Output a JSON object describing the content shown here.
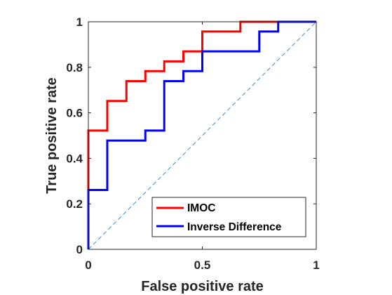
{
  "chart_data": {
    "type": "line",
    "title": "",
    "xlabel": "False positive rate",
    "ylabel": "True positive rate",
    "xlim": [
      0,
      1
    ],
    "ylim": [
      0,
      1
    ],
    "xticks": [
      0,
      0.5,
      1
    ],
    "yticks": [
      0,
      0.2,
      0.4,
      0.6,
      0.8,
      1
    ],
    "xtick_labels": [
      "0",
      "0.5",
      "1"
    ],
    "ytick_labels": [
      "0",
      "0.2",
      "0.4",
      "0.6",
      "0.8",
      "1"
    ],
    "grid": false,
    "legend_position": "bottom-right",
    "step_curve": true,
    "series": [
      {
        "name": "IMOC",
        "color": "#ff0000",
        "x": [
          0,
          0,
          0.083,
          0.083,
          0.167,
          0.167,
          0.25,
          0.25,
          0.333,
          0.333,
          0.417,
          0.417,
          0.5,
          0.5,
          0.667,
          0.667,
          0.833,
          0.833,
          1
        ],
        "y": [
          0,
          0.522,
          0.522,
          0.652,
          0.652,
          0.739,
          0.739,
          0.783,
          0.783,
          0.826,
          0.826,
          0.87,
          0.87,
          0.957,
          0.957,
          1,
          1,
          1,
          1
        ]
      },
      {
        "name": "Inverse Difference",
        "color": "#0000ff",
        "x": [
          0,
          0,
          0.083,
          0.083,
          0.25,
          0.25,
          0.333,
          0.333,
          0.417,
          0.417,
          0.5,
          0.5,
          0.75,
          0.75,
          0.833,
          0.833,
          1
        ],
        "y": [
          0,
          0.261,
          0.261,
          0.478,
          0.478,
          0.522,
          0.522,
          0.739,
          0.739,
          0.783,
          0.783,
          0.87,
          0.87,
          0.957,
          0.957,
          1,
          1
        ]
      }
    ],
    "reference_line": {
      "x": [
        0,
        1
      ],
      "y": [
        0,
        1
      ],
      "color": "#3d8fd6",
      "style": "dashed"
    }
  }
}
